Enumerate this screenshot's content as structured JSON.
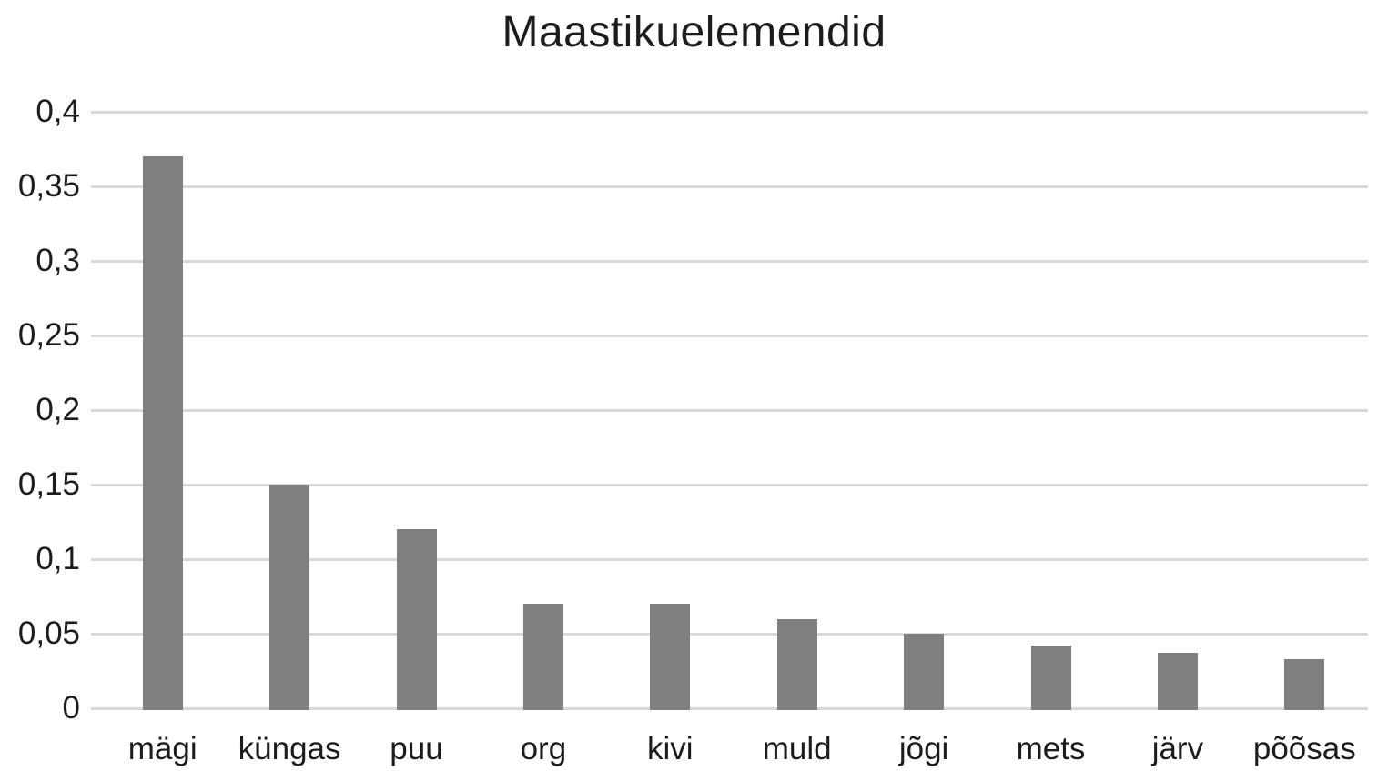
{
  "chart_data": {
    "type": "bar",
    "title": "Maastikuelemendid",
    "categories": [
      "mägi",
      "küngas",
      "puu",
      "org",
      "kivi",
      "muld",
      "jõgi",
      "mets",
      "järv",
      "põõsas"
    ],
    "values": [
      0.37,
      0.15,
      0.12,
      0.07,
      0.07,
      0.06,
      0.05,
      0.042,
      0.037,
      0.033
    ],
    "xlabel": "",
    "ylabel": "",
    "ylim": [
      0,
      0.4
    ],
    "ytick_step": 0.05,
    "ytick_labels": [
      "0",
      "0,05",
      "0,1",
      "0,15",
      "0,2",
      "0,25",
      "0,3",
      "0,35",
      "0,4"
    ],
    "decimal_separator": ",",
    "grid": true,
    "legend": "none",
    "colors": {
      "bar": "#7f7f7f",
      "gridline": "#d9d9d9",
      "text": "#1c1c1c",
      "background": "#ffffff"
    }
  }
}
